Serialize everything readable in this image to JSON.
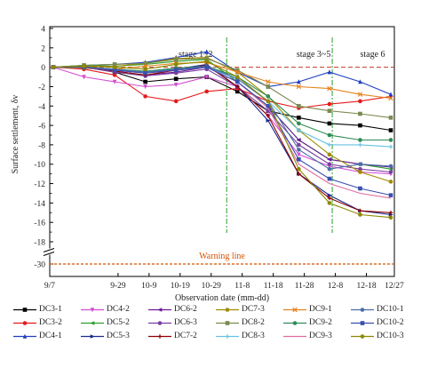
{
  "chart_data": {
    "type": "line",
    "ylabel": "Surface settlement, δv",
    "xlabel": "Observation date (mm-dd)",
    "x_ticks": [
      "9-7",
      "9-29",
      "10-9",
      "10-19",
      "10-29",
      "11-8",
      "11-18",
      "11-28",
      "12-8",
      "12-18",
      "12-27"
    ],
    "y_ticks": [
      4,
      2,
      0,
      -2,
      -4,
      -6,
      -8,
      -10,
      -12,
      -14,
      -16,
      -18,
      -30
    ],
    "ylim": [
      -30,
      4
    ],
    "axis_break": [
      -18,
      -30
    ],
    "stages": [
      {
        "label": "stage 1~2",
        "x": "10-24"
      },
      {
        "label": "stage 3~5",
        "x": "12-1"
      },
      {
        "label": "stage 6",
        "x": "12-20"
      }
    ],
    "stage_dividers": [
      "11-3",
      "12-7"
    ],
    "zero_line": 0,
    "warning_line": {
      "label": "Warning line",
      "value": -30
    },
    "colors": {
      "zero_line": "#c0392b",
      "warning": "#d35400",
      "divider": "#4caf50"
    },
    "series": [
      {
        "name": "DC3-1",
        "color": "#000000",
        "marker": "square",
        "values": [
          0,
          0,
          -0.5,
          -1.5,
          -1.2,
          -1.0,
          -2.5,
          -4.5,
          -5.2,
          -5.8,
          -6.0,
          -6.5
        ]
      },
      {
        "name": "DC3-2",
        "color": "#e41a1c",
        "marker": "circle",
        "values": [
          0,
          -0.2,
          -0.8,
          -3.0,
          -3.5,
          -2.5,
          -2.2,
          -3.5,
          -4.2,
          -3.8,
          -3.5,
          -3.0
        ]
      },
      {
        "name": "DC4-1",
        "color": "#1f3fbf",
        "marker": "triangle-up",
        "values": [
          0,
          0.2,
          0.3,
          0.5,
          1.0,
          1.6,
          -0.5,
          -2.0,
          -1.5,
          -0.5,
          -1.5,
          -2.8
        ]
      },
      {
        "name": "DC4-2",
        "color": "#d24dd2",
        "marker": "triangle-down",
        "values": [
          0,
          -1.0,
          -1.5,
          -2.0,
          -1.8,
          -1.0,
          -2.0,
          -5.0,
          -9.0,
          -10.2,
          -10.8,
          -11.0
        ]
      },
      {
        "name": "DC5-2",
        "color": "#2ca02c",
        "marker": "triangle-left",
        "values": [
          0,
          0.2,
          0.1,
          0.3,
          0.6,
          0.8,
          -1.5,
          -4.0,
          -7.5,
          -9.5,
          -10.0,
          -10.5
        ]
      },
      {
        "name": "DC5-3",
        "color": "#1a2a8f",
        "marker": "triangle-right",
        "values": [
          0,
          -0.1,
          -0.3,
          -0.6,
          -0.2,
          0.3,
          -2.0,
          -5.5,
          -11.0,
          -13.2,
          -14.8,
          -15.2
        ]
      },
      {
        "name": "DC6-2",
        "color": "#6a1b9a",
        "marker": "triangle-left",
        "values": [
          0,
          0,
          -0.4,
          -0.8,
          -0.5,
          0,
          -1.5,
          -4.0,
          -7.5,
          -9.5,
          -10.0,
          -10.3
        ]
      },
      {
        "name": "DC6-3",
        "color": "#7b3fa0",
        "marker": "circle",
        "values": [
          0,
          0,
          -0.5,
          -0.9,
          -0.6,
          -0.2,
          -2.0,
          -4.5,
          -8.0,
          -10.0,
          -10.5,
          -10.8
        ]
      },
      {
        "name": "DC7-2",
        "color": "#8b0000",
        "marker": "plus",
        "values": [
          0,
          0.1,
          -0.4,
          -0.8,
          -0.3,
          0.2,
          -2.0,
          -5.0,
          -11.0,
          -13.5,
          -14.8,
          -15.0
        ]
      },
      {
        "name": "DC7-3",
        "color": "#a08a00",
        "marker": "circle",
        "values": [
          0,
          0.1,
          0.1,
          0.4,
          0.9,
          1.0,
          -0.5,
          -3.0,
          -6.5,
          -9.0,
          -10.8,
          -11.8
        ]
      },
      {
        "name": "DC8-2",
        "color": "#7a8a4f",
        "marker": "square",
        "values": [
          0,
          0.2,
          0.3,
          0.4,
          0.8,
          0.9,
          -0.3,
          -2.0,
          -4.0,
          -4.5,
          -4.8,
          -5.2
        ]
      },
      {
        "name": "DC8-3",
        "color": "#66c2e0",
        "marker": "plus",
        "values": [
          0,
          0,
          -0.3,
          -0.5,
          -0.2,
          0,
          -1.2,
          -3.5,
          -6.5,
          -8.0,
          -8.0,
          -8.2
        ]
      },
      {
        "name": "DC9-1",
        "color": "#e6821e",
        "marker": "cross",
        "values": [
          0,
          -0.1,
          -0.2,
          0.1,
          0.4,
          0.5,
          -0.5,
          -1.5,
          -2.0,
          -2.2,
          -2.8,
          -3.2
        ]
      },
      {
        "name": "DC9-2",
        "color": "#2e8b57",
        "marker": "circle",
        "values": [
          0,
          0,
          -0.2,
          -0.4,
          -0.1,
          0.1,
          -1.0,
          -3.0,
          -5.8,
          -7.0,
          -7.5,
          -7.5
        ]
      },
      {
        "name": "DC9-3",
        "color": "#e06ca0",
        "marker": "none",
        "values": [
          0,
          0,
          -0.3,
          -0.6,
          -0.3,
          0,
          -1.5,
          -4.2,
          -10.0,
          -12.0,
          -13.0,
          -13.5
        ]
      },
      {
        "name": "DC10-1",
        "color": "#4a6fa5",
        "marker": "circle",
        "values": [
          0,
          0,
          -0.2,
          -0.5,
          -0.2,
          0.1,
          -1.2,
          -3.5,
          -8.5,
          -10.5,
          -10.0,
          -10.2
        ]
      },
      {
        "name": "DC10-2",
        "color": "#3a4fb0",
        "marker": "square",
        "values": [
          0,
          0,
          -0.3,
          -0.6,
          -0.3,
          0,
          -1.5,
          -4.0,
          -9.5,
          -11.5,
          -12.5,
          -13.2
        ]
      },
      {
        "name": "DC10-3",
        "color": "#8a8a00",
        "marker": "circle",
        "values": [
          0,
          0.1,
          0,
          -0.2,
          0.3,
          0.6,
          -1.0,
          -3.5,
          -10.5,
          -14.0,
          -15.2,
          -15.5
        ]
      }
    ]
  }
}
